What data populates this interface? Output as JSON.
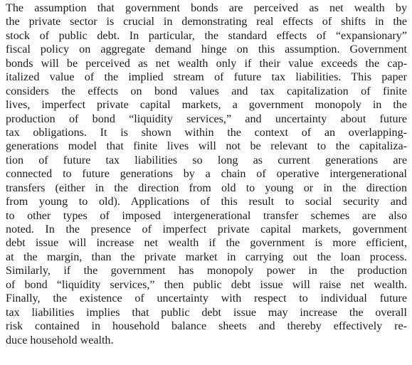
{
  "abstract": {
    "lines": [
      "The assumption that government bonds are perceived as net wealth by",
      "the private sector is crucial in demonstrating real effects of shifts in the",
      "stock of public debt. In particular, the standard effects of “expansionary”",
      "fiscal policy on aggregate demand hinge on this assumption. Government",
      "bonds will be perceived as net wealth only if their value exceeds the cap-",
      "italized value of the implied stream of future tax liabilities. This paper",
      "considers the effects on bond values and tax capitalization of finite",
      "lives, imperfect private capital markets, a government monopoly in the",
      "production of bond “liquidity services,” and uncertainty about future",
      "tax obligations. It is shown within the context of an overlapping-",
      "generations model that finite lives will not be relevant to the capitaliza-",
      "tion of future tax liabilities so long as current generations are",
      "connected to future generations by a chain of operative intergenerational",
      "transfers (either in the direction from old to young or in the direction",
      "from young to old). Applications of this result to social security and",
      "to other types of imposed intergenerational transfer schemes are also",
      "noted. In the presence of imperfect private capital markets, government",
      "debt issue will increase net wealth if the government is more efficient,",
      "at the margin, than the private market in carrying out the loan process.",
      "Similarly, if the government has monopoly power in the production",
      "of bond “liquidity services,” then public debt issue will raise net wealth.",
      "Finally, the existence of uncertainty with respect to individual future",
      "tax liabilities implies that public debt issue may increase the overall",
      "risk contained in household balance sheets and thereby effectively re-",
      "duce household wealth."
    ]
  }
}
